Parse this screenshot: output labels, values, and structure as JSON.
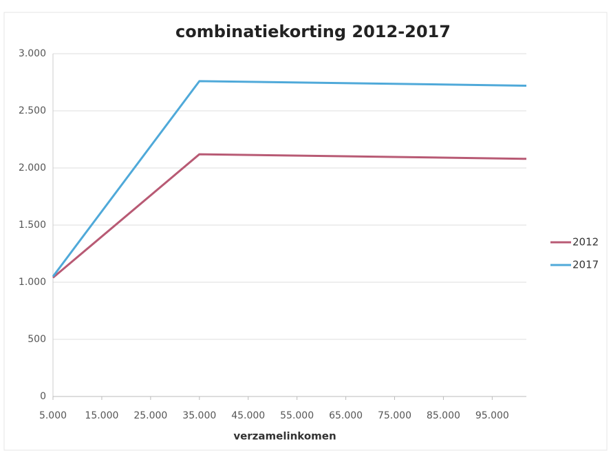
{
  "chart_data": {
    "type": "line",
    "title": "combinatiekorting 2012-2017",
    "x_label": "verzamelinkomen",
    "x": [
      5000,
      35000,
      102000
    ],
    "series": [
      {
        "name": "2012",
        "color": "#b85a74",
        "values": [
          1040,
          2120,
          2080
        ]
      },
      {
        "name": "2017",
        "color": "#4fa9d9",
        "values": [
          1050,
          2760,
          2720
        ]
      }
    ],
    "xlim": [
      5000,
      102000
    ],
    "xticks": [
      {
        "value": 5000,
        "label": "5.000"
      },
      {
        "value": 15000,
        "label": "15.000"
      },
      {
        "value": 25000,
        "label": "25.000"
      },
      {
        "value": 35000,
        "label": "35.000"
      },
      {
        "value": 45000,
        "label": "45.000"
      },
      {
        "value": 55000,
        "label": "55.000"
      },
      {
        "value": 65000,
        "label": "65.000"
      },
      {
        "value": 75000,
        "label": "75.000"
      },
      {
        "value": 85000,
        "label": "85.000"
      },
      {
        "value": 95000,
        "label": "95.000"
      }
    ],
    "ylim": [
      0,
      3000
    ],
    "yticks": [
      0,
      500,
      {
        "value": 1000,
        "label": "1.000"
      },
      {
        "value": 1500,
        "label": "1.500"
      },
      {
        "value": 2000,
        "label": "2.000"
      },
      {
        "value": 2500,
        "label": "2.500"
      },
      {
        "value": 3000,
        "label": "3.000"
      }
    ],
    "grid": true,
    "legend": "right"
  }
}
